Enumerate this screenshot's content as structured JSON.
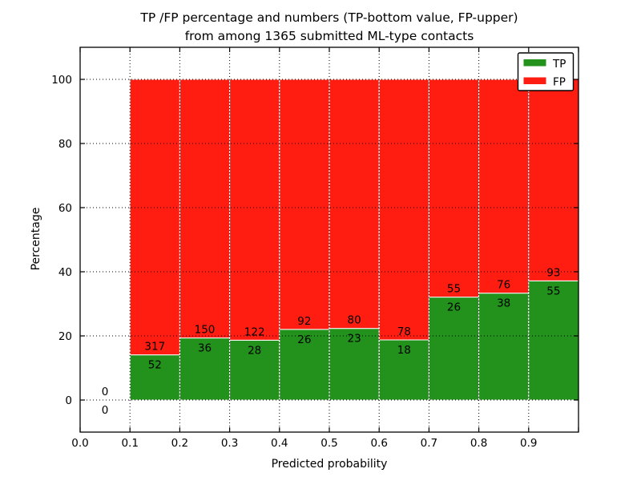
{
  "chart_data": {
    "type": "bar",
    "stacked": true,
    "normalized_to_percent": true,
    "title_lines": [
      "TP /FP percentage and numbers (TP-bottom value, FP-upper)",
      "from among 1365 submitted ML-type contacts"
    ],
    "xlabel": "Predicted probability",
    "ylabel": "Percentage",
    "total_contacts_in_title": 1365,
    "bin_width": 0.1,
    "bin_starts": [
      0.0,
      0.1,
      0.2,
      0.3,
      0.4,
      0.5,
      0.6,
      0.7,
      0.8,
      0.9
    ],
    "series": [
      {
        "name": "TP",
        "color": "#22921c",
        "counts": [
          0,
          52,
          36,
          28,
          26,
          23,
          18,
          26,
          38,
          55
        ]
      },
      {
        "name": "FP",
        "color": "#ff1d12",
        "counts": [
          0,
          317,
          150,
          122,
          92,
          80,
          78,
          55,
          76,
          93
        ]
      }
    ],
    "xlim": [
      0.0,
      1.0
    ],
    "ylim": [
      -10,
      110
    ],
    "xtick_labels": [
      "0.0",
      "0.1",
      "0.2",
      "0.3",
      "0.4",
      "0.5",
      "0.6",
      "0.7",
      "0.8",
      "0.9"
    ],
    "ytick_values": [
      0,
      20,
      40,
      60,
      80,
      100
    ],
    "grid": {
      "style": "dotted",
      "color": "#000000"
    },
    "bar_edge_color": "#ffffff",
    "legend": {
      "position": "upper right",
      "entries": [
        "TP",
        "FP"
      ]
    }
  }
}
